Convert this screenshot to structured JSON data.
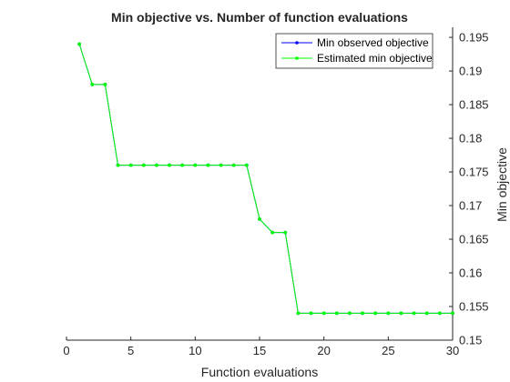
{
  "chart_data": {
    "type": "line",
    "title": "Min objective vs. Number of function evaluations",
    "xlabel": "Function evaluations",
    "ylabel": "Min objective",
    "xlim": [
      0,
      30
    ],
    "ylim": [
      0.15,
      0.1965
    ],
    "x_ticks": [
      0,
      5,
      10,
      15,
      20,
      25,
      30
    ],
    "y_ticks": [
      0.15,
      0.155,
      0.16,
      0.165,
      0.17,
      0.175,
      0.18,
      0.185,
      0.19,
      0.195
    ],
    "y_tick_labels": [
      "0.15",
      "0.155",
      "0.16",
      "0.165",
      "0.17",
      "0.175",
      "0.18",
      "0.185",
      "0.19",
      "0.195"
    ],
    "y_axis_side": "right",
    "grid": false,
    "legend_position": "top-right",
    "series": [
      {
        "name": "Min observed objective",
        "color": "#0000ff",
        "x": [
          1,
          2,
          3,
          4,
          5,
          6,
          7,
          8,
          9,
          10,
          11,
          12,
          13,
          14,
          15,
          16,
          17,
          18,
          19,
          20,
          21,
          22,
          23,
          24,
          25,
          26,
          27,
          28,
          29,
          30
        ],
        "y": [
          0.194,
          0.188,
          0.188,
          0.176,
          0.176,
          0.176,
          0.176,
          0.176,
          0.176,
          0.176,
          0.176,
          0.176,
          0.176,
          0.176,
          0.168,
          0.166,
          0.166,
          0.154,
          0.154,
          0.154,
          0.154,
          0.154,
          0.154,
          0.154,
          0.154,
          0.154,
          0.154,
          0.154,
          0.154,
          0.154
        ]
      },
      {
        "name": "Estimated min objective",
        "color": "#00ff00",
        "x": [
          1,
          2,
          3,
          4,
          5,
          6,
          7,
          8,
          9,
          10,
          11,
          12,
          13,
          14,
          15,
          16,
          17,
          18,
          19,
          20,
          21,
          22,
          23,
          24,
          25,
          26,
          27,
          28,
          29,
          30
        ],
        "y": [
          0.194,
          0.188,
          0.188,
          0.176,
          0.176,
          0.176,
          0.176,
          0.176,
          0.176,
          0.176,
          0.176,
          0.176,
          0.176,
          0.176,
          0.168,
          0.166,
          0.166,
          0.154,
          0.154,
          0.154,
          0.154,
          0.154,
          0.154,
          0.154,
          0.154,
          0.154,
          0.154,
          0.154,
          0.154,
          0.154
        ]
      }
    ]
  }
}
